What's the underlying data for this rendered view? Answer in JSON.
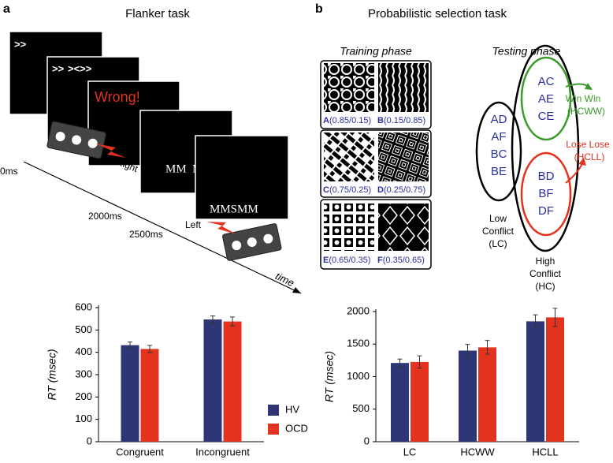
{
  "panels": {
    "a": {
      "letter": "a",
      "title": "Flanker task",
      "screens": [
        ">>",
        "><>>",
        "Wrong!",
        "MM  MM",
        "MMSMM"
      ],
      "screen_prefix": ">>",
      "times": [
        "0ms",
        "2000ms",
        "2500ms"
      ],
      "right": "Right",
      "left": "Left",
      "axis": "time"
    },
    "b": {
      "letter": "b",
      "title": "Probabilistic selection task",
      "training_title": "Training phase",
      "testing_title": "Testing phase",
      "pairs": [
        [
          {
            "letter": "A",
            "probs": "(0.85/0.15)"
          },
          {
            "letter": "B",
            "probs": "(0.15/0.85)"
          }
        ],
        [
          {
            "letter": "C",
            "probs": "(0.75/0.25)"
          },
          {
            "letter": "D",
            "probs": "(0.25/0.75)"
          }
        ],
        [
          {
            "letter": "E",
            "probs": "(0.65/0.35)"
          },
          {
            "letter": "F",
            "probs": "(0.35/0.65)"
          }
        ]
      ],
      "low": [
        "AD",
        "AF",
        "BC",
        "BE"
      ],
      "low_label": [
        "Low",
        "Conflict",
        "(LC)"
      ],
      "ww": [
        "AC",
        "AE",
        "CE"
      ],
      "ww_label": [
        "Win Win",
        "(HCWW)"
      ],
      "ll": [
        "BD",
        "BF",
        "DF"
      ],
      "ll_label": [
        "Lose Lose",
        "(HCLL)"
      ],
      "high_label": [
        "High",
        "Conflict",
        "(HC)"
      ]
    }
  },
  "chart_data": [
    {
      "type": "bar",
      "ylabel": "RT (msec)",
      "categories": [
        "Congruent",
        "Incongruent"
      ],
      "series": [
        {
          "name": "HV",
          "color": "#2e3676",
          "values": [
            432,
            547
          ],
          "errors": [
            14,
            16
          ]
        },
        {
          "name": "OCD",
          "color": "#e3321d",
          "values": [
            415,
            538
          ],
          "errors": [
            16,
            20
          ]
        }
      ],
      "ylim": [
        0,
        600
      ],
      "yticks": [
        0,
        100,
        200,
        300,
        400,
        500,
        600
      ],
      "legend": "lower right"
    },
    {
      "type": "bar",
      "ylabel": "RT (msec)",
      "categories": [
        "LC",
        "HCWW",
        "HCLL"
      ],
      "series": [
        {
          "color": "#2e3676",
          "values": [
            1210,
            1400,
            1850
          ],
          "errors": [
            60,
            95,
            100
          ]
        },
        {
          "color": "#e3321d",
          "values": [
            1225,
            1450,
            1910
          ],
          "errors": [
            95,
            105,
            140
          ]
        }
      ],
      "ylim": [
        0,
        2000
      ],
      "yticks": [
        0,
        500,
        1000,
        1500,
        2000
      ]
    }
  ]
}
